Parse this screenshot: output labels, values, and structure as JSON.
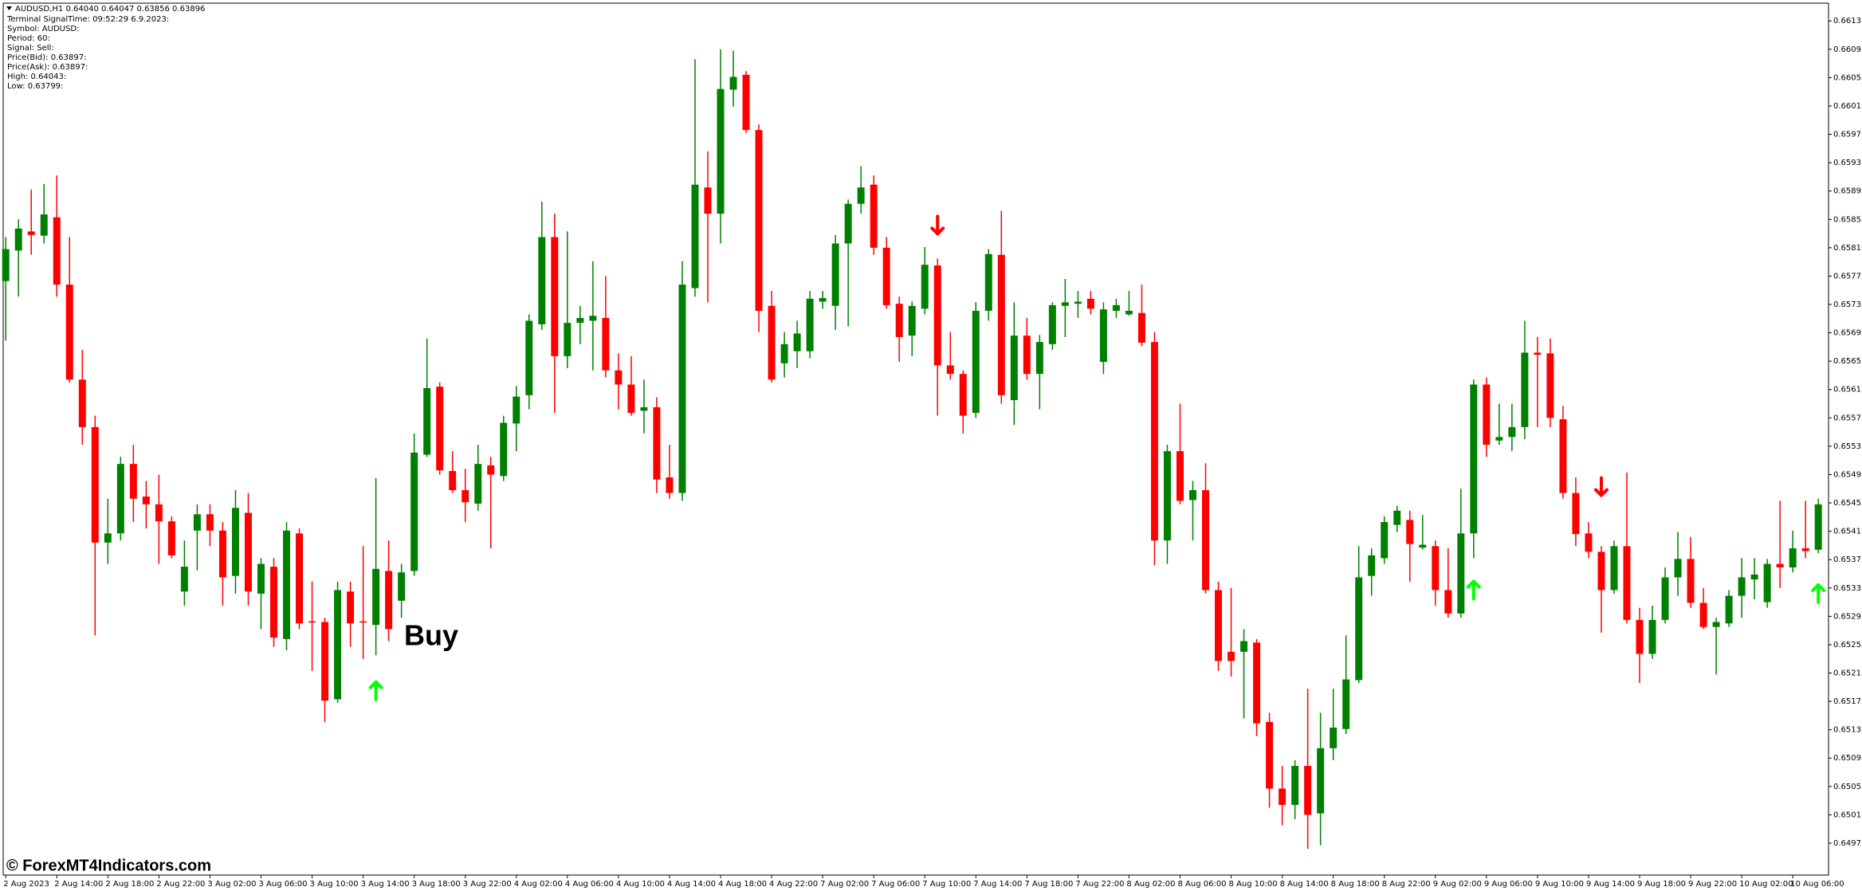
{
  "info": {
    "header": "AUDUSD,H1  0.64040 0.64047 0.63856 0.63896",
    "lines": [
      "Terminal SignalTime: 09:52:29   6.9.2023:",
      "Symbol: AUDUSD:",
      "Period: 60:",
      "Signal: Sell:",
      "Price(Bid): 0.63897:",
      "Price(Ask): 0.63897:",
      "High: 0.64043:",
      "Low: 0.63799:"
    ]
  },
  "watermark": "© ForexMT4Indicators.com",
  "chart_data": {
    "type": "candlestick",
    "categories": [
      "2 Aug 2023",
      null,
      null,
      null,
      "2 Aug 14:00",
      null,
      null,
      null,
      "2 Aug 18:00",
      null,
      null,
      null,
      "2 Aug 22:00",
      null,
      null,
      null,
      "3 Aug 02:00",
      null,
      null,
      null,
      "3 Aug 06:00",
      null,
      null,
      null,
      "3 Aug 10:00",
      null,
      null,
      null,
      "3 Aug 14:00",
      null,
      null,
      null,
      "3 Aug 18:00",
      null,
      null,
      null,
      "3 Aug 22:00",
      null,
      null,
      null,
      "4 Aug 02:00",
      null,
      null,
      null,
      "4 Aug 06:00",
      null,
      null,
      null,
      "4 Aug 10:00",
      null,
      null,
      null,
      "4 Aug 14:00",
      null,
      null,
      null,
      "4 Aug 18:00",
      null,
      null,
      null,
      "4 Aug 22:00",
      null,
      null,
      null,
      "7 Aug 02:00",
      null,
      null,
      null,
      "7 Aug 06:00",
      null,
      null,
      null,
      "7 Aug 10:00",
      null,
      null,
      null,
      "7 Aug 14:00",
      null,
      null,
      null,
      "7 Aug 18:00",
      null,
      null,
      null,
      "7 Aug 22:00",
      null,
      null,
      null,
      "8 Aug 02:00",
      null,
      null,
      null,
      "8 Aug 06:00",
      null,
      null,
      null,
      "8 Aug 10:00",
      null,
      null,
      null,
      "8 Aug 14:00",
      null,
      null,
      null,
      "8 Aug 18:00",
      null,
      null,
      null,
      "8 Aug 22:00",
      null,
      null,
      null,
      "9 Aug 02:00",
      null,
      null,
      null,
      "9 Aug 06:00",
      null,
      null,
      null,
      "9 Aug 10:00",
      null,
      null,
      null,
      "9 Aug 14:00",
      null,
      null,
      null,
      "9 Aug 18:00",
      null,
      null,
      null,
      "9 Aug 22:00",
      null,
      null,
      null,
      "10 Aug 02:00",
      null,
      null,
      null,
      "10 Aug 06:00",
      null,
      null
    ],
    "open": [
      0.65768,
      0.65811,
      0.65838,
      0.65832,
      0.65858,
      0.65763,
      0.65629,
      0.65562,
      0.65399,
      0.65412,
      0.6551,
      0.65464,
      0.65453,
      0.65429,
      0.6533,
      0.65416,
      0.65439,
      0.65416,
      0.65352,
      0.65441,
      0.65327,
      0.65365,
      0.65263,
      0.65412,
      0.65288,
      0.65287,
      0.65178,
      0.6533,
      0.65288,
      0.65283,
      0.65359,
      0.65317,
      0.65359,
      0.65523,
      0.65619,
      0.655,
      0.65473,
      0.65454,
      0.65508,
      0.65493,
      0.65567,
      0.65607,
      0.65707,
      0.6583,
      0.65662,
      0.65709,
      0.65712,
      0.65716,
      0.65642,
      0.65622,
      0.65585,
      0.6559,
      0.65491,
      0.65469,
      0.65758,
      0.659,
      0.65863,
      0.66038,
      0.66059,
      0.65981,
      0.65733,
      0.65652,
      0.65669,
      0.65669,
      0.65739,
      0.65733,
      0.65821,
      0.65877,
      0.65904,
      0.65815,
      0.65736,
      0.65691,
      0.65729,
      0.6579,
      0.65649,
      0.65637,
      0.65582,
      0.65726,
      0.65805,
      0.656,
      0.65691,
      0.65637,
      0.65679,
      0.65733,
      0.65736,
      0.65743,
      0.65654,
      0.65726,
      0.65721,
      0.65723,
      0.65682,
      0.65402,
      0.65528,
      0.65459,
      0.65473,
      0.65332,
      0.65245,
      0.65245,
      0.65258,
      0.65146,
      0.65052,
      0.65029,
      0.65084,
      0.65017,
      0.65109,
      0.65136,
      0.65205,
      0.65352,
      0.65377,
      0.65424,
      0.65431,
      0.65392,
      0.65394,
      0.65332,
      0.65299,
      0.65412,
      0.65622,
      0.65543,
      0.65548,
      0.65562,
      0.65667,
      0.65666,
      0.65573,
      0.65469,
      0.65412,
      0.65386,
      0.65332,
      0.65394,
      0.6529,
      0.65242,
      0.6529,
      0.6535,
      0.65376,
      0.65314,
      0.6528,
      0.65285,
      0.65324,
      0.65347,
      0.65315,
      0.65369,
      0.65364,
      0.65391,
      0.65389
    ],
    "high": [
      0.6583,
      0.65855,
      0.65897,
      0.65905,
      0.65917,
      0.6583,
      0.65671,
      0.65578,
      0.65461,
      0.6552,
      0.65537,
      0.65486,
      0.65495,
      0.65436,
      0.65402,
      0.65453,
      0.65453,
      0.65428,
      0.65473,
      0.65469,
      0.65377,
      0.65377,
      0.65428,
      0.65419,
      0.65344,
      0.65293,
      0.65344,
      0.65344,
      0.65394,
      0.6549,
      0.65402,
      0.65369,
      0.65553,
      0.65687,
      0.65625,
      0.65528,
      0.65503,
      0.65537,
      0.6552,
      0.65578,
      0.6562,
      0.65721,
      0.6588,
      0.65863,
      0.65838,
      0.65733,
      0.65796,
      0.65775,
      0.65666,
      0.65662,
      0.65629,
      0.65604,
      0.65537,
      0.65796,
      0.66081,
      0.65951,
      0.66095,
      0.66093,
      0.66064,
      0.65989,
      0.65754,
      0.65696,
      0.65712,
      0.65754,
      0.65754,
      0.65833,
      0.65883,
      0.6593,
      0.65917,
      0.6583,
      0.65746,
      0.65739,
      0.65816,
      0.658,
      0.65696,
      0.65642,
      0.65738,
      0.65813,
      0.65867,
      0.65738,
      0.65716,
      0.65692,
      0.65738,
      0.65771,
      0.65754,
      0.65754,
      0.65738,
      0.65743,
      0.65754,
      0.65763,
      0.65696,
      0.65537,
      0.65595,
      0.65486,
      0.65511,
      0.65344,
      0.65335,
      0.65277,
      0.65263,
      0.65159,
      0.65084,
      0.65092,
      0.65193,
      0.65159,
      0.65193,
      0.65268,
      0.65394,
      0.65391,
      0.65436,
      0.65451,
      0.65444,
      0.65438,
      0.65402,
      0.65391,
      0.65475,
      0.65629,
      0.65632,
      0.65595,
      0.65595,
      0.65712,
      0.65689,
      0.65687,
      0.65592,
      0.65491,
      0.65428,
      0.65394,
      0.65402,
      0.65498,
      0.65307,
      0.6531,
      0.65364,
      0.65414,
      0.65407,
      0.65335,
      0.65293,
      0.65332,
      0.65377,
      0.65377,
      0.65376,
      0.65458,
      0.65416,
      0.65458,
      0.65461
    ],
    "low": [
      0.65684,
      0.65746,
      0.65805,
      0.65821,
      0.65746,
      0.65625,
      0.65537,
      0.65268,
      0.65369,
      0.65402,
      0.65428,
      0.65419,
      0.65369,
      0.65377,
      0.6531,
      0.6536,
      0.65394,
      0.6531,
      0.65327,
      0.6531,
      0.65277,
      0.65252,
      0.65247,
      0.65277,
      0.65218,
      0.65146,
      0.65173,
      0.65252,
      0.65235,
      0.6524,
      0.6526,
      0.65293,
      0.65352,
      0.6552,
      0.65495,
      0.65469,
      0.65428,
      0.65444,
      0.65391,
      0.65486,
      0.65528,
      0.65587,
      0.65699,
      0.65582,
      0.65645,
      0.65679,
      0.65642,
      0.65632,
      0.65587,
      0.65578,
      0.65553,
      0.65469,
      0.65461,
      0.65458,
      0.65746,
      0.65738,
      0.65821,
      0.66014,
      0.65977,
      0.65696,
      0.65625,
      0.65632,
      0.65645,
      0.65659,
      0.65729,
      0.65699,
      0.65704,
      0.65863,
      0.65805,
      0.65729,
      0.65654,
      0.65662,
      0.65721,
      0.65578,
      0.65629,
      0.65553,
      0.65575,
      0.65712,
      0.65595,
      0.65565,
      0.65629,
      0.65587,
      0.65671,
      0.65689,
      0.65716,
      0.65721,
      0.65637,
      0.65716,
      0.65719,
      0.65676,
      0.65367,
      0.65369,
      0.65453,
      0.65402,
      0.65327,
      0.65218,
      0.6521,
      0.65151,
      0.65126,
      0.65025,
      0.65,
      0.65009,
      0.64967,
      0.64972,
      0.65092,
      0.65129,
      0.65201,
      0.65324,
      0.65369,
      0.65414,
      0.65344,
      0.65389,
      0.6531,
      0.65293,
      0.65293,
      0.65377,
      0.6552,
      0.65537,
      0.65528,
      0.65545,
      0.65562,
      0.65562,
      0.65461,
      0.65394,
      0.65377,
      0.65272,
      0.65327,
      0.65285,
      0.65201,
      0.65235,
      0.65285,
      0.65324,
      0.65307,
      0.65277,
      0.65213,
      0.6528,
      0.65293,
      0.65319,
      0.65307,
      0.65335,
      0.65357,
      0.65377,
      0.65384
    ],
    "close": [
      0.65813,
      0.65842,
      0.65833,
      0.65862,
      0.65763,
      0.65629,
      0.65562,
      0.65399,
      0.65412,
      0.6551,
      0.65461,
      0.65453,
      0.65429,
      0.65381,
      0.65365,
      0.65439,
      0.65416,
      0.6535,
      0.65448,
      0.6533,
      0.65369,
      0.65265,
      0.65416,
      0.65285,
      0.65287,
      0.65176,
      0.65332,
      0.65285,
      0.65287,
      0.65362,
      0.65277,
      0.65357,
      0.65526,
      0.65617,
      0.65501,
      0.65473,
      0.65456,
      0.6551,
      0.65495,
      0.65568,
      0.65605,
      0.65712,
      0.6583,
      0.65662,
      0.65709,
      0.65716,
      0.65719,
      0.65642,
      0.65622,
      0.65582,
      0.6559,
      0.65488,
      0.65469,
      0.65763,
      0.65904,
      0.65863,
      0.66039,
      0.66056,
      0.65981,
      0.65726,
      0.65629,
      0.65679,
      0.65694,
      0.65743,
      0.65744,
      0.65821,
      0.65877,
      0.659,
      0.65815,
      0.65734,
      0.65689,
      0.65733,
      0.65791,
      0.65649,
      0.65637,
      0.65578,
      0.65726,
      0.65806,
      0.65607,
      0.65691,
      0.65637,
      0.65682,
      0.65734,
      0.65738,
      0.65739,
      0.65729,
      0.65728,
      0.65734,
      0.65726,
      0.65681,
      0.65402,
      0.65528,
      0.65458,
      0.65473,
      0.65332,
      0.65232,
      0.65232,
      0.6526,
      0.65144,
      0.65052,
      0.65029,
      0.65084,
      0.65015,
      0.65109,
      0.65138,
      0.65206,
      0.6535,
      0.65381,
      0.65428,
      0.65444,
      0.65397,
      0.65396,
      0.65332,
      0.65299,
      0.65412,
      0.65622,
      0.65537,
      0.65548,
      0.65562,
      0.65667,
      0.65664,
      0.65575,
      0.65469,
      0.65411,
      0.65386,
      0.65332,
      0.65394,
      0.6529,
      0.65242,
      0.6529,
      0.6535,
      0.65376,
      0.65314,
      0.6528,
      0.65287,
      0.65324,
      0.6535,
      0.65354,
      0.65369,
      0.65364,
      0.65391,
      0.65387,
      0.65453
    ],
    "colors": {
      "up": "#008000",
      "down": "#ff0000"
    },
    "ylim": [
      0.6493,
      0.6616
    ],
    "yticks": [
      0.64975,
      0.65015,
      0.65055,
      0.65095,
      0.65135,
      0.65175,
      0.65215,
      0.65255,
      0.65295,
      0.65335,
      0.65375,
      0.65415,
      0.65455,
      0.65495,
      0.65535,
      0.65575,
      0.65615,
      0.65655,
      0.65695,
      0.65735,
      0.65775,
      0.65815,
      0.65855,
      0.65895,
      0.65935,
      0.65975,
      0.66015,
      0.66055,
      0.66095,
      0.66135
    ],
    "grid": false,
    "signals": [
      {
        "direction": "up",
        "candle": 29,
        "value": 0.6519,
        "color": "#00ff00"
      },
      {
        "direction": "down",
        "candle": 73,
        "value": 0.65847,
        "color": "#ff0000"
      },
      {
        "direction": "up",
        "candle": 115,
        "value": 0.65332,
        "color": "#00ff00"
      },
      {
        "direction": "down",
        "candle": 125,
        "value": 0.65478,
        "color": "#ff0000"
      },
      {
        "direction": "up",
        "candle": 142,
        "value": 0.65327,
        "color": "#00ff00"
      }
    ],
    "annotation": "Buy"
  }
}
